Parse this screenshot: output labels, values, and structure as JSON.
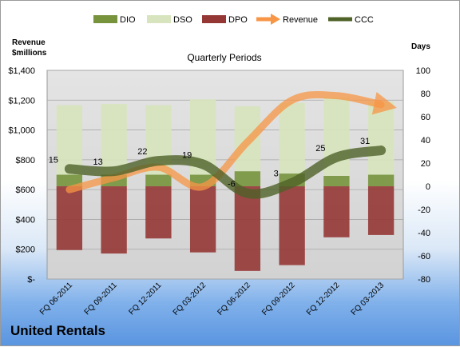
{
  "company": "United Rentals",
  "chart_data": {
    "type": "bar",
    "title": "Quarterly Periods",
    "y_left_label": [
      "Revenue",
      "$millions"
    ],
    "y_right_label": "Days",
    "y_left_ticks": [
      "$-",
      "$200",
      "$400",
      "$600",
      "$800",
      "$1,000",
      "$1,200",
      "$1,400"
    ],
    "y_left_range": [
      0,
      1400
    ],
    "y_right_ticks": [
      "-80",
      "-60",
      "-40",
      "-20",
      "0",
      "20",
      "40",
      "60",
      "80",
      "100"
    ],
    "y_right_range": [
      -80,
      100
    ],
    "categories": [
      "FQ 06-2011",
      "FQ 09-2011",
      "FQ 12-2011",
      "FQ 03-2012",
      "FQ 06-2012",
      "FQ 09-2012",
      "FQ 12-2012",
      "FQ 03-2013"
    ],
    "legend": [
      "DIO",
      "DSO",
      "DPO",
      "Revenue",
      "CCC"
    ],
    "legend_position": "top",
    "series": [
      {
        "name": "DIO",
        "axis": "right",
        "color": "#77933c",
        "values": [
          10,
          10,
          10,
          10,
          13,
          11,
          9,
          10
        ]
      },
      {
        "name": "DSO",
        "axis": "right",
        "color": "#d7e4bd",
        "values": [
          60,
          61,
          60,
          65,
          56,
          61,
          68,
          63
        ]
      },
      {
        "name": "DPO",
        "axis": "right",
        "color": "#953735",
        "values": [
          -55,
          -58,
          -45,
          -57,
          -73,
          -68,
          -44,
          -42
        ]
      },
      {
        "name": "Revenue",
        "axis": "left",
        "color": "#f79646",
        "values": [
          600,
          680,
          750,
          620,
          920,
          1200,
          1230,
          1170
        ]
      },
      {
        "name": "CCC",
        "axis": "right",
        "color": "#4f6228",
        "values": [
          15,
          13,
          22,
          19,
          -6,
          3,
          25,
          31
        ]
      }
    ],
    "ccc_labels": [
      "15",
      "13",
      "22",
      "19",
      "-6",
      "3",
      "25",
      "31"
    ],
    "grid": true
  }
}
